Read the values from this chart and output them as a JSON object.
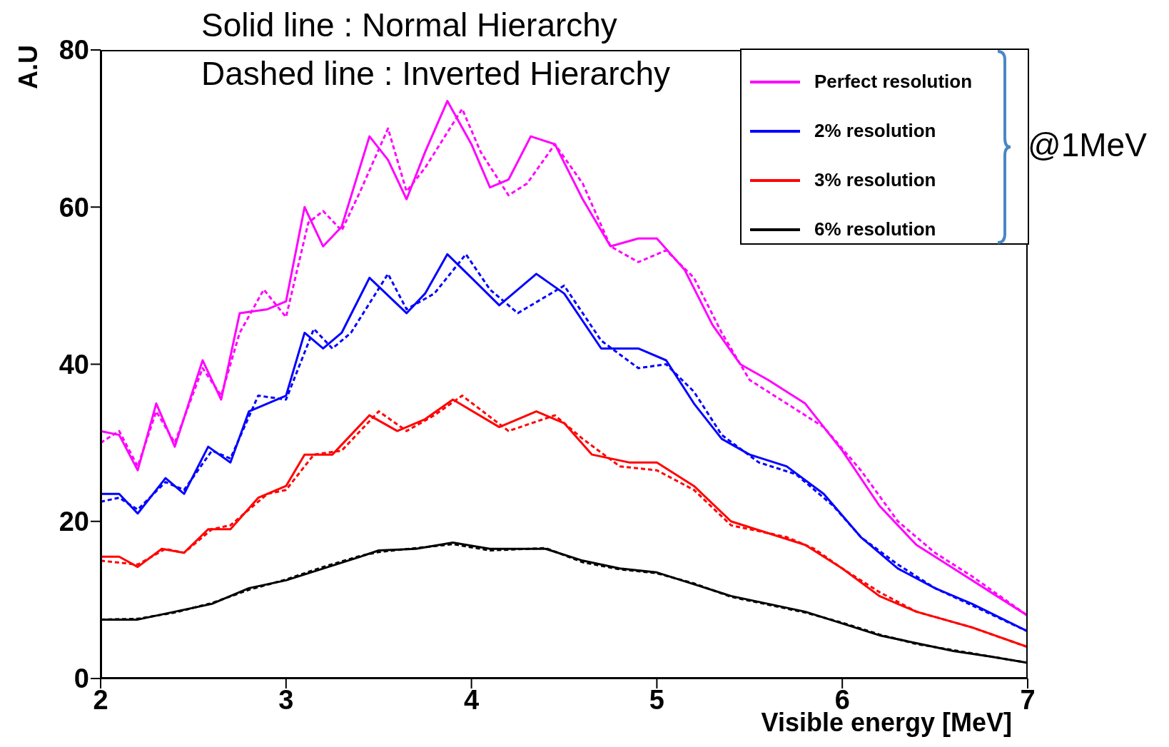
{
  "chart_data": {
    "type": "line",
    "xlabel": "Visible energy [MeV]",
    "ylabel": "A.U",
    "xlim": [
      2,
      7
    ],
    "ylim": [
      0,
      80
    ],
    "xticks": [
      2,
      3,
      4,
      5,
      6,
      7
    ],
    "yticks": [
      0,
      20,
      40,
      60,
      80
    ],
    "legend": "top right",
    "marker": "none",
    "legend_title": "@1MeV",
    "annotations": [
      "Solid line : Normal Hierarchy",
      "Dashed line : Inverted Hierarchy"
    ],
    "series": [
      {
        "name": "Perfect resolution",
        "color": "#ff00ff",
        "line_style": "solid",
        "x": [
          2.0,
          2.1,
          2.2,
          2.3,
          2.4,
          2.55,
          2.65,
          2.75,
          2.9,
          3.0,
          3.1,
          3.2,
          3.3,
          3.45,
          3.55,
          3.65,
          3.75,
          3.87,
          4.0,
          4.1,
          4.2,
          4.32,
          4.45,
          4.6,
          4.75,
          4.9,
          5.0,
          5.15,
          5.3,
          5.45,
          5.6,
          5.8,
          6.0,
          6.2,
          6.4,
          6.6,
          6.8,
          7.0
        ],
        "values": [
          31.5,
          31,
          26.5,
          35,
          29.5,
          40.5,
          35.5,
          46.5,
          47,
          48,
          60,
          55,
          57.5,
          69,
          66,
          61,
          67,
          73.5,
          68,
          62.5,
          63.5,
          69,
          68,
          61,
          55,
          56,
          56,
          52,
          45,
          40,
          38,
          35,
          29,
          22,
          17,
          14,
          11,
          8
        ]
      },
      {
        "color": "#ff00ff",
        "line_style": "dashed",
        "x": [
          2.0,
          2.1,
          2.2,
          2.3,
          2.4,
          2.55,
          2.65,
          2.75,
          2.88,
          3.0,
          3.12,
          3.2,
          3.3,
          3.4,
          3.55,
          3.65,
          3.75,
          3.95,
          4.05,
          4.2,
          4.3,
          4.45,
          4.6,
          4.75,
          4.9,
          5.05,
          5.2,
          5.35,
          5.5,
          5.7,
          5.9,
          6.1,
          6.3,
          6.5,
          6.7,
          7.0
        ],
        "values": [
          30,
          31.5,
          27,
          34,
          30,
          39.5,
          36,
          44,
          49.5,
          46,
          58,
          59.5,
          57,
          62,
          70,
          62,
          65,
          72.5,
          67,
          61.5,
          63,
          68,
          63,
          55,
          53,
          54.5,
          51,
          44,
          38,
          35,
          32,
          26.5,
          20,
          16,
          13,
          8
        ]
      },
      {
        "name": "2% resolution",
        "color": "#0000ff",
        "line_style": "solid",
        "x": [
          2.0,
          2.1,
          2.2,
          2.35,
          2.45,
          2.58,
          2.7,
          2.8,
          2.9,
          3.0,
          3.1,
          3.2,
          3.3,
          3.45,
          3.65,
          3.75,
          3.87,
          4.0,
          4.15,
          4.35,
          4.5,
          4.7,
          4.9,
          5.05,
          5.2,
          5.35,
          5.5,
          5.7,
          5.9,
          6.1,
          6.3,
          6.5,
          6.7,
          7.0
        ],
        "values": [
          23.5,
          23.5,
          21,
          25.5,
          23.5,
          29.5,
          27.5,
          34,
          35,
          36,
          44,
          42,
          44,
          51,
          46.5,
          49,
          54,
          51,
          47.5,
          51.5,
          49,
          42,
          42,
          40.5,
          35,
          30.5,
          28.5,
          27,
          23.5,
          18,
          14,
          11.5,
          9.5,
          6
        ]
      },
      {
        "color": "#0000ff",
        "line_style": "dashed",
        "x": [
          2.0,
          2.1,
          2.2,
          2.35,
          2.45,
          2.6,
          2.7,
          2.85,
          3.0,
          3.15,
          3.25,
          3.35,
          3.55,
          3.65,
          3.8,
          3.97,
          4.1,
          4.25,
          4.5,
          4.7,
          4.9,
          5.05,
          5.2,
          5.35,
          5.55,
          5.75,
          5.95,
          6.1,
          6.3,
          6.5,
          7.0
        ],
        "values": [
          22.5,
          23,
          21.5,
          25,
          24,
          29,
          28,
          36,
          35.5,
          44.5,
          42,
          44,
          51.5,
          47,
          49,
          54,
          49.5,
          46.5,
          50,
          43,
          39.5,
          40,
          36.5,
          31,
          27.5,
          26,
          22,
          18,
          14.5,
          11.5,
          6
        ]
      },
      {
        "name": "3% resolution",
        "color": "#ff0000",
        "line_style": "solid",
        "x": [
          2.0,
          2.1,
          2.2,
          2.33,
          2.45,
          2.58,
          2.7,
          2.85,
          3.0,
          3.1,
          3.25,
          3.45,
          3.6,
          3.75,
          3.9,
          4.15,
          4.35,
          4.5,
          4.65,
          4.85,
          5.0,
          5.2,
          5.4,
          5.6,
          5.8,
          6.0,
          6.2,
          6.4,
          6.7,
          7.0
        ],
        "values": [
          15.5,
          15.5,
          14.2,
          16.5,
          16,
          19,
          19,
          23,
          24.5,
          28.5,
          28.5,
          33.5,
          31.5,
          33,
          35.5,
          32,
          34,
          32.5,
          28.5,
          27.5,
          27.5,
          24.5,
          20,
          18.5,
          17,
          14,
          10.5,
          8.5,
          6.5,
          4
        ]
      },
      {
        "color": "#ff0000",
        "line_style": "dashed",
        "x": [
          2.0,
          2.2,
          2.35,
          2.45,
          2.6,
          2.7,
          2.9,
          3.0,
          3.15,
          3.3,
          3.5,
          3.65,
          3.8,
          3.95,
          4.2,
          4.45,
          4.6,
          4.8,
          5.0,
          5.2,
          5.4,
          5.7,
          5.85,
          6.0,
          6.2,
          6.4,
          6.7,
          7.0
        ],
        "values": [
          15,
          14.5,
          16.5,
          16,
          19,
          19.5,
          23.5,
          24,
          28.5,
          29,
          34,
          31.5,
          33.5,
          36,
          31.5,
          33.5,
          30.5,
          27,
          26.5,
          24,
          19.5,
          18,
          16.5,
          14,
          11,
          8.5,
          6.5,
          4
        ]
      },
      {
        "name": "6% resolution",
        "color": "#000000",
        "line_style": "solid",
        "x": [
          2.0,
          2.2,
          2.4,
          2.6,
          2.8,
          3.0,
          3.2,
          3.4,
          3.5,
          3.7,
          3.9,
          4.1,
          4.4,
          4.6,
          4.8,
          5.0,
          5.2,
          5.4,
          5.6,
          5.8,
          6.0,
          6.2,
          6.4,
          6.6,
          6.8,
          7.0
        ],
        "values": [
          7.5,
          7.5,
          8.5,
          9.5,
          11.5,
          12.5,
          14,
          15.5,
          16.3,
          16.5,
          17.3,
          16.5,
          16.5,
          15,
          14,
          13.5,
          12,
          10.5,
          9.5,
          8.5,
          7,
          5.5,
          4.5,
          3.5,
          2.8,
          2
        ]
      },
      {
        "color": "#000000",
        "line_style": "dashed",
        "x": [
          2.0,
          2.2,
          2.4,
          2.6,
          2.8,
          3.0,
          3.2,
          3.4,
          3.5,
          3.7,
          3.9,
          4.1,
          4.4,
          4.6,
          4.8,
          5.0,
          5.2,
          5.4,
          5.6,
          5.8,
          6.0,
          6.2,
          6.4,
          6.6,
          6.8,
          7.0
        ],
        "values": [
          7.5,
          7.6,
          8.4,
          9.6,
          11.3,
          12.6,
          14.2,
          15.6,
          16.1,
          16.6,
          17.1,
          16.3,
          16.6,
          14.8,
          13.9,
          13.4,
          12.1,
          10.4,
          9.4,
          8.4,
          7.1,
          5.6,
          4.4,
          3.6,
          2.8,
          2
        ]
      }
    ]
  }
}
